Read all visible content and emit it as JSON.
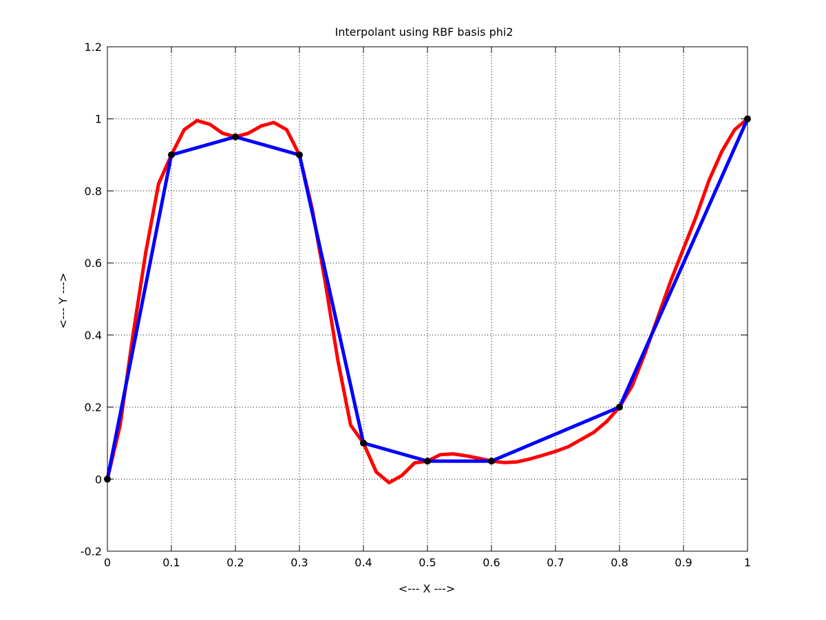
{
  "chart_data": {
    "type": "line",
    "title": "Interpolant using RBF basis phi2",
    "xlabel": "<--- X --->",
    "ylabel": "<--- Y --->",
    "xlim": [
      0,
      1
    ],
    "ylim": [
      -0.2,
      1.2
    ],
    "grid": true,
    "x_ticks": [
      0,
      0.1,
      0.2,
      0.3,
      0.4,
      0.5,
      0.6,
      0.7,
      0.8,
      0.9,
      1
    ],
    "x_tick_labels": [
      "0",
      "0.1",
      "0.2",
      "0.3",
      "0.4",
      "0.5",
      "0.6",
      "0.7",
      "0.8",
      "0.9",
      "1"
    ],
    "y_ticks": [
      -0.2,
      0,
      0.2,
      0.4,
      0.6,
      0.8,
      1,
      1.2
    ],
    "y_tick_labels": [
      "-0.2",
      "0",
      "0.2",
      "0.4",
      "0.6",
      "0.8",
      "1",
      "1.2"
    ],
    "series": [
      {
        "color": "#ff0000",
        "x": [
          0,
          0.02,
          0.04,
          0.06,
          0.08,
          0.1,
          0.12,
          0.14,
          0.16,
          0.18,
          0.2,
          0.22,
          0.24,
          0.26,
          0.28,
          0.3,
          0.32,
          0.34,
          0.36,
          0.38,
          0.4,
          0.42,
          0.44,
          0.46,
          0.48,
          0.5,
          0.52,
          0.54,
          0.56,
          0.58,
          0.6,
          0.62,
          0.64,
          0.66,
          0.68,
          0.7,
          0.72,
          0.74,
          0.76,
          0.78,
          0.8,
          0.82,
          0.84,
          0.86,
          0.88,
          0.9,
          0.92,
          0.94,
          0.96,
          0.98,
          1
        ],
        "y": [
          0,
          0.15,
          0.4,
          0.63,
          0.82,
          0.9,
          0.97,
          0.995,
          0.985,
          0.96,
          0.95,
          0.96,
          0.98,
          0.99,
          0.97,
          0.9,
          0.75,
          0.55,
          0.33,
          0.15,
          0.1,
          0.02,
          -0.01,
          0.01,
          0.045,
          0.05,
          0.068,
          0.07,
          0.065,
          0.058,
          0.05,
          0.046,
          0.048,
          0.056,
          0.066,
          0.077,
          0.09,
          0.11,
          0.13,
          0.16,
          0.2,
          0.26,
          0.35,
          0.45,
          0.55,
          0.64,
          0.73,
          0.83,
          0.91,
          0.97,
          1
        ]
      },
      {
        "color": "#0000ff",
        "x": [
          0,
          0.1,
          0.2,
          0.3,
          0.4,
          0.5,
          0.6,
          0.8,
          1
        ],
        "y": [
          0,
          0.9,
          0.95,
          0.9,
          0.1,
          0.05,
          0.05,
          0.2,
          1
        ]
      }
    ],
    "points": {
      "color": "#000000",
      "x": [
        0,
        0.1,
        0.2,
        0.3,
        0.4,
        0.5,
        0.6,
        0.8,
        1
      ],
      "y": [
        0,
        0.9,
        0.95,
        0.9,
        0.1,
        0.05,
        0.05,
        0.2,
        1
      ]
    }
  }
}
